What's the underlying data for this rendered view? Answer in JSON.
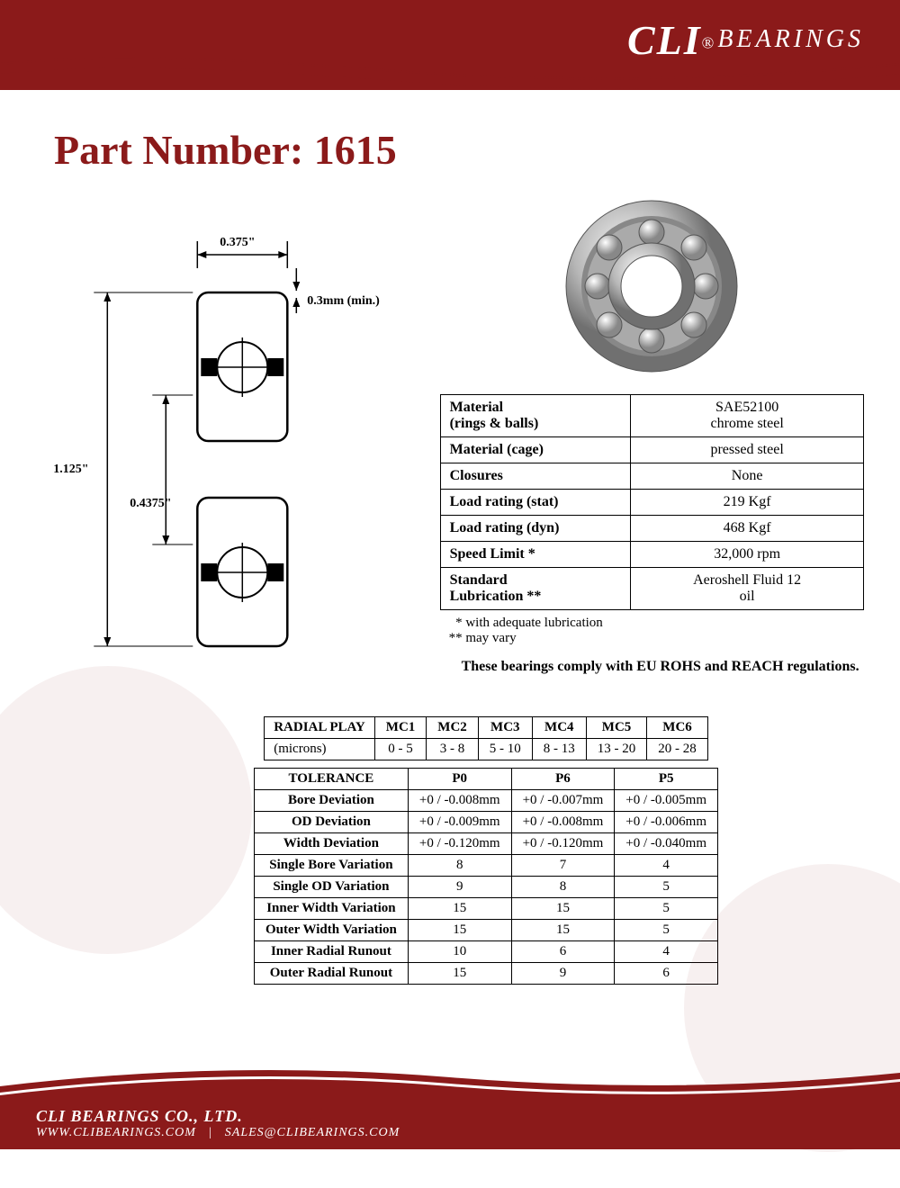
{
  "brand": {
    "cli": "CLI",
    "reg": "®",
    "bearings": "BEARINGS",
    "primary_color": "#8b1a1a"
  },
  "title": "Part Number: 1615",
  "diagram": {
    "width_label": "0.375\"",
    "chamfer_label": "0.3mm (min.)",
    "outer_dia_label": "1.125\"",
    "inner_dia_label": "0.4375\""
  },
  "spec_table": {
    "rows": [
      {
        "label": "Material\n(rings & balls)",
        "value": "SAE52100\nchrome steel"
      },
      {
        "label": "Material (cage)",
        "value": "pressed steel"
      },
      {
        "label": "Closures",
        "value": "None"
      },
      {
        "label": "Load rating (stat)",
        "value": "219 Kgf"
      },
      {
        "label": "Load rating (dyn)",
        "value": "468 Kgf"
      },
      {
        "label": "Speed Limit *",
        "value": "32,000 rpm"
      },
      {
        "label": "Standard\nLubrication  **",
        "value": "Aeroshell Fluid 12\noil"
      }
    ]
  },
  "footnotes": {
    "a": "  * with adequate lubrication",
    "b": "** may vary"
  },
  "compliance": "These bearings comply with EU ROHS and REACH  regulations.",
  "radial_play": {
    "header": "RADIAL PLAY",
    "unit": "(microns)",
    "columns": [
      "MC1",
      "MC2",
      "MC3",
      "MC4",
      "MC5",
      "MC6"
    ],
    "values": [
      "0 - 5",
      "3 - 8",
      "5 - 10",
      "8 - 13",
      "13 - 20",
      "20 - 28"
    ]
  },
  "tolerance": {
    "header": "TOLERANCE",
    "columns": [
      "P0",
      "P6",
      "P5"
    ],
    "rows": [
      {
        "label": "Bore Deviation",
        "v": [
          "+0 / -0.008mm",
          "+0 / -0.007mm",
          "+0 / -0.005mm"
        ]
      },
      {
        "label": "OD Deviation",
        "v": [
          "+0 / -0.009mm",
          "+0 / -0.008mm",
          "+0 / -0.006mm"
        ]
      },
      {
        "label": "Width Deviation",
        "v": [
          "+0 / -0.120mm",
          "+0 / -0.120mm",
          "+0 / -0.040mm"
        ]
      },
      {
        "label": "Single Bore Variation",
        "v": [
          "8",
          "7",
          "4"
        ]
      },
      {
        "label": "Single OD Variation",
        "v": [
          "9",
          "8",
          "5"
        ]
      },
      {
        "label": "Inner Width Variation",
        "v": [
          "15",
          "15",
          "5"
        ]
      },
      {
        "label": "Outer Width Variation",
        "v": [
          "15",
          "15",
          "5"
        ]
      },
      {
        "label": "Inner Radial Runout",
        "v": [
          "10",
          "6",
          "4"
        ]
      },
      {
        "label": "Outer Radial Runout",
        "v": [
          "15",
          "9",
          "6"
        ]
      }
    ]
  },
  "footer": {
    "company": "CLI BEARINGS CO., LTD.",
    "website": "WWW.CLIBEARINGS.COM",
    "sep": "|",
    "email": "SALES@CLIBEARINGS.COM"
  }
}
